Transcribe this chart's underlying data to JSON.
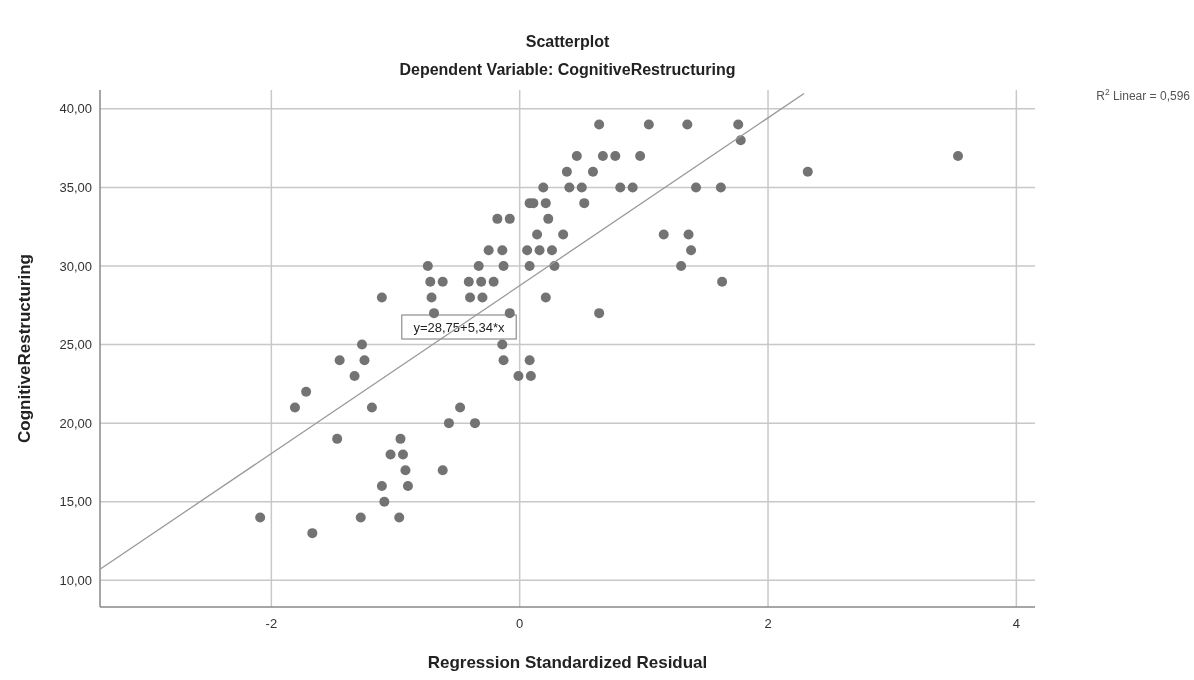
{
  "chart_data": {
    "type": "scatter",
    "title": "Scatterplot",
    "subtitle": "Dependent Variable: CognitiveRestructuring",
    "xlabel": "Regression Standardized Residual",
    "ylabel": "CognitiveRestructuring",
    "xlim": [
      -3.38,
      4.15
    ],
    "xticks": [
      -2,
      0,
      2,
      4
    ],
    "ylim": [
      8.3,
      41.2
    ],
    "yticks": [
      {
        "value": 10,
        "label": "10,00"
      },
      {
        "value": 15,
        "label": "15,00"
      },
      {
        "value": 20,
        "label": "20,00"
      },
      {
        "value": 25,
        "label": "25,00"
      },
      {
        "value": 30,
        "label": "30,00"
      },
      {
        "value": 35,
        "label": "35,00"
      },
      {
        "value": 40,
        "label": "40,00"
      }
    ],
    "grid": true,
    "marker": "circle",
    "series": [
      {
        "color": "#737373",
        "x": [
          -2.09,
          -1.67,
          -1.81,
          -1.72,
          -1.47,
          -1.45,
          -1.33,
          -1.27,
          -1.25,
          -1.19,
          -1.28,
          -1.11,
          -1.11,
          -1.09,
          -1.04,
          -0.96,
          -0.94,
          -0.92,
          -0.9,
          -0.97,
          -0.62,
          -0.57,
          -0.48,
          -0.36,
          -0.74,
          -0.72,
          -0.62,
          -0.71,
          -0.69,
          -0.41,
          -0.31,
          -0.21,
          -0.4,
          -0.3,
          -0.33,
          -0.25,
          -0.14,
          -0.18,
          -0.08,
          -0.13,
          0.08,
          -0.08,
          -0.14,
          -0.13,
          -0.01,
          0.08,
          0.09,
          0.06,
          0.08,
          0.16,
          0.26,
          0.28,
          0.21,
          0.14,
          0.35,
          0.23,
          0.11,
          0.21,
          0.19,
          0.4,
          0.5,
          0.52,
          0.38,
          0.59,
          0.46,
          0.67,
          0.77,
          0.97,
          0.64,
          1.04,
          1.35,
          1.76,
          1.78,
          0.81,
          0.91,
          1.42,
          1.62,
          1.16,
          1.36,
          1.38,
          1.3,
          1.63,
          0.64,
          2.32,
          3.53
        ],
        "values": [
          14,
          13,
          21,
          22,
          19,
          24,
          23,
          25,
          24,
          21,
          14,
          28,
          16,
          15,
          18,
          19,
          18,
          17,
          16,
          14,
          17,
          20,
          21,
          20,
          30,
          29,
          29,
          28,
          27,
          29,
          29,
          29,
          28,
          28,
          30,
          31,
          31,
          33,
          33,
          30,
          34,
          27,
          25,
          24,
          23,
          24,
          23,
          31,
          30,
          31,
          31,
          30,
          28,
          32,
          32,
          33,
          34,
          34,
          35,
          35,
          35,
          34,
          36,
          36,
          37,
          37,
          37,
          37,
          39,
          39,
          39,
          39,
          38,
          35,
          35,
          35,
          35,
          32,
          32,
          31,
          30,
          29,
          27,
          36,
          37
        ]
      },
      {
        "type": "line",
        "color": "#999999",
        "marker": "none",
        "x": [
          -3.38,
          2.29
        ],
        "values": [
          10.7,
          40.98
        ]
      }
    ],
    "annotations": [
      "y=28,75+5,34*x",
      "R$^{2}$ Linear = 0,596"
    ]
  }
}
